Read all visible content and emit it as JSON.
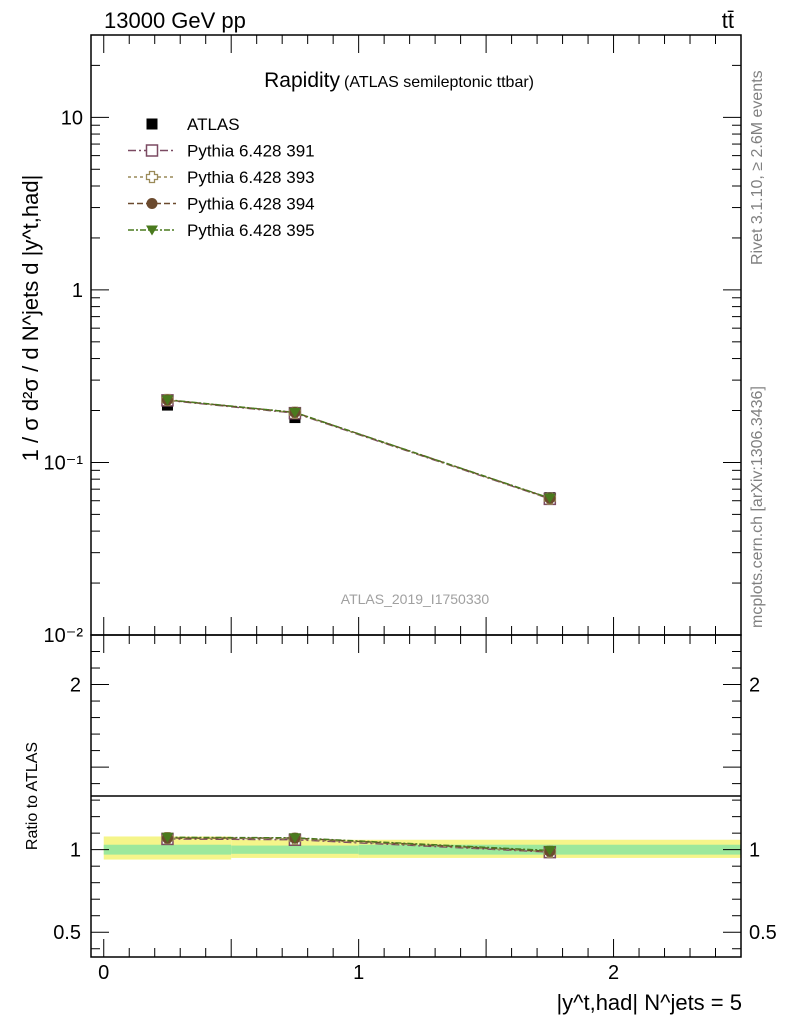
{
  "header": {
    "energy": "13000 GeV pp",
    "process": "tt̄"
  },
  "side": {
    "rivet": "Rivet 3.1.10, ≥ 2.6M events",
    "site": "mcplots.cern.ch [arXiv:1306.3436]"
  },
  "chart_data": [
    {
      "type": "line",
      "title": "Rapidity",
      "subtitle": "(ATLAS semileptonic ttbar)",
      "analysis_tag": "ATLAS_2019_I1750330",
      "ylabel": "1 / σ d²σ / d N^jets d |y^t,had|",
      "yscale": "log",
      "ylim": [
        0.01,
        30
      ],
      "xlim": [
        -0.05,
        2.5
      ],
      "y_tick_labels": [
        "10⁻²",
        "10⁻¹",
        "1",
        "10"
      ],
      "legend_position": "top-left",
      "x": [
        0.25,
        0.75,
        1.75
      ],
      "bin_edges": [
        0,
        0.5,
        1.0,
        2.5
      ],
      "series": [
        {
          "name": "ATLAS",
          "marker": "filled-square",
          "color": "#000000",
          "values": [
            0.215,
            0.182,
            0.0625
          ]
        },
        {
          "name": "Pythia 6.428 391",
          "marker": "open-square",
          "color": "#7b4a62",
          "values": [
            0.229,
            0.193,
            0.0615
          ]
        },
        {
          "name": "Pythia 6.428 393",
          "marker": "open-cross",
          "color": "#9a8a58",
          "values": [
            0.23,
            0.194,
            0.0617
          ]
        },
        {
          "name": "Pythia 6.428 394",
          "marker": "filled-circle",
          "color": "#6b4a2e",
          "values": [
            0.23,
            0.195,
            0.062
          ]
        },
        {
          "name": "Pythia 6.428 395",
          "marker": "filled-triangle-down",
          "color": "#4a7a1e",
          "values": [
            0.231,
            0.195,
            0.0622
          ]
        }
      ]
    },
    {
      "type": "line",
      "ylabel": "Ratio to ATLAS",
      "xlabel": "|y^t,had| N^jets = 5",
      "ylim": [
        0.35,
        2.3
      ],
      "y_tick_labels": [
        "0.5",
        "1",
        "2"
      ],
      "x_tick_labels": [
        "0",
        "1",
        "2"
      ],
      "reference_line": 1,
      "uncertainty_bands": {
        "inner_color": "#9ce89c",
        "outer_color": "#f5f58a",
        "inner": [
          [
            0.97,
            1.03
          ],
          [
            0.975,
            1.025
          ],
          [
            0.97,
            1.03
          ]
        ],
        "outer": [
          [
            0.94,
            1.08
          ],
          [
            0.95,
            1.06
          ],
          [
            0.95,
            1.06
          ]
        ]
      },
      "x": [
        0.25,
        0.75,
        1.75
      ],
      "series": [
        {
          "name": "Pythia 6.428 391",
          "values": [
            1.065,
            1.06,
            0.985
          ]
        },
        {
          "name": "Pythia 6.428 393",
          "values": [
            1.07,
            1.065,
            0.987
          ]
        },
        {
          "name": "Pythia 6.428 394",
          "values": [
            1.07,
            1.07,
            0.99
          ]
        },
        {
          "name": "Pythia 6.428 395",
          "values": [
            1.075,
            1.072,
            0.995
          ]
        }
      ]
    }
  ]
}
